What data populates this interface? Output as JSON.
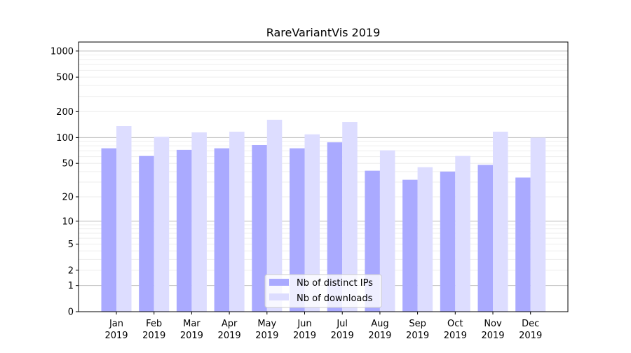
{
  "chart_data": {
    "type": "bar",
    "title": "RareVariantVis 2019",
    "xlabel": "",
    "ylabel": "",
    "y_scale": "log(1+y)",
    "ylim": [
      0,
      1270
    ],
    "y_ticks": [
      0,
      1,
      2,
      5,
      10,
      20,
      50,
      100,
      200,
      500,
      1000
    ],
    "grid": "horizontal major and minor",
    "legend_position": "lower center",
    "categories": [
      "Jan\n2019",
      "Feb\n2019",
      "Mar\n2019",
      "Apr\n2019",
      "May\n2019",
      "Jun\n2019",
      "Jul\n2019",
      "Aug\n2019",
      "Sep\n2019",
      "Oct\n2019",
      "Nov\n2019",
      "Dec\n2019"
    ],
    "series": [
      {
        "name": "Nb of distinct IPs",
        "color": "#aaaaff",
        "values": [
          75,
          61,
          72,
          75,
          82,
          75,
          88,
          41,
          32,
          40,
          48,
          34
        ]
      },
      {
        "name": "Nb of downloads",
        "color": "#ddddff",
        "values": [
          136,
          102,
          115,
          117,
          161,
          109,
          152,
          71,
          45,
          61,
          117,
          100
        ]
      }
    ]
  }
}
